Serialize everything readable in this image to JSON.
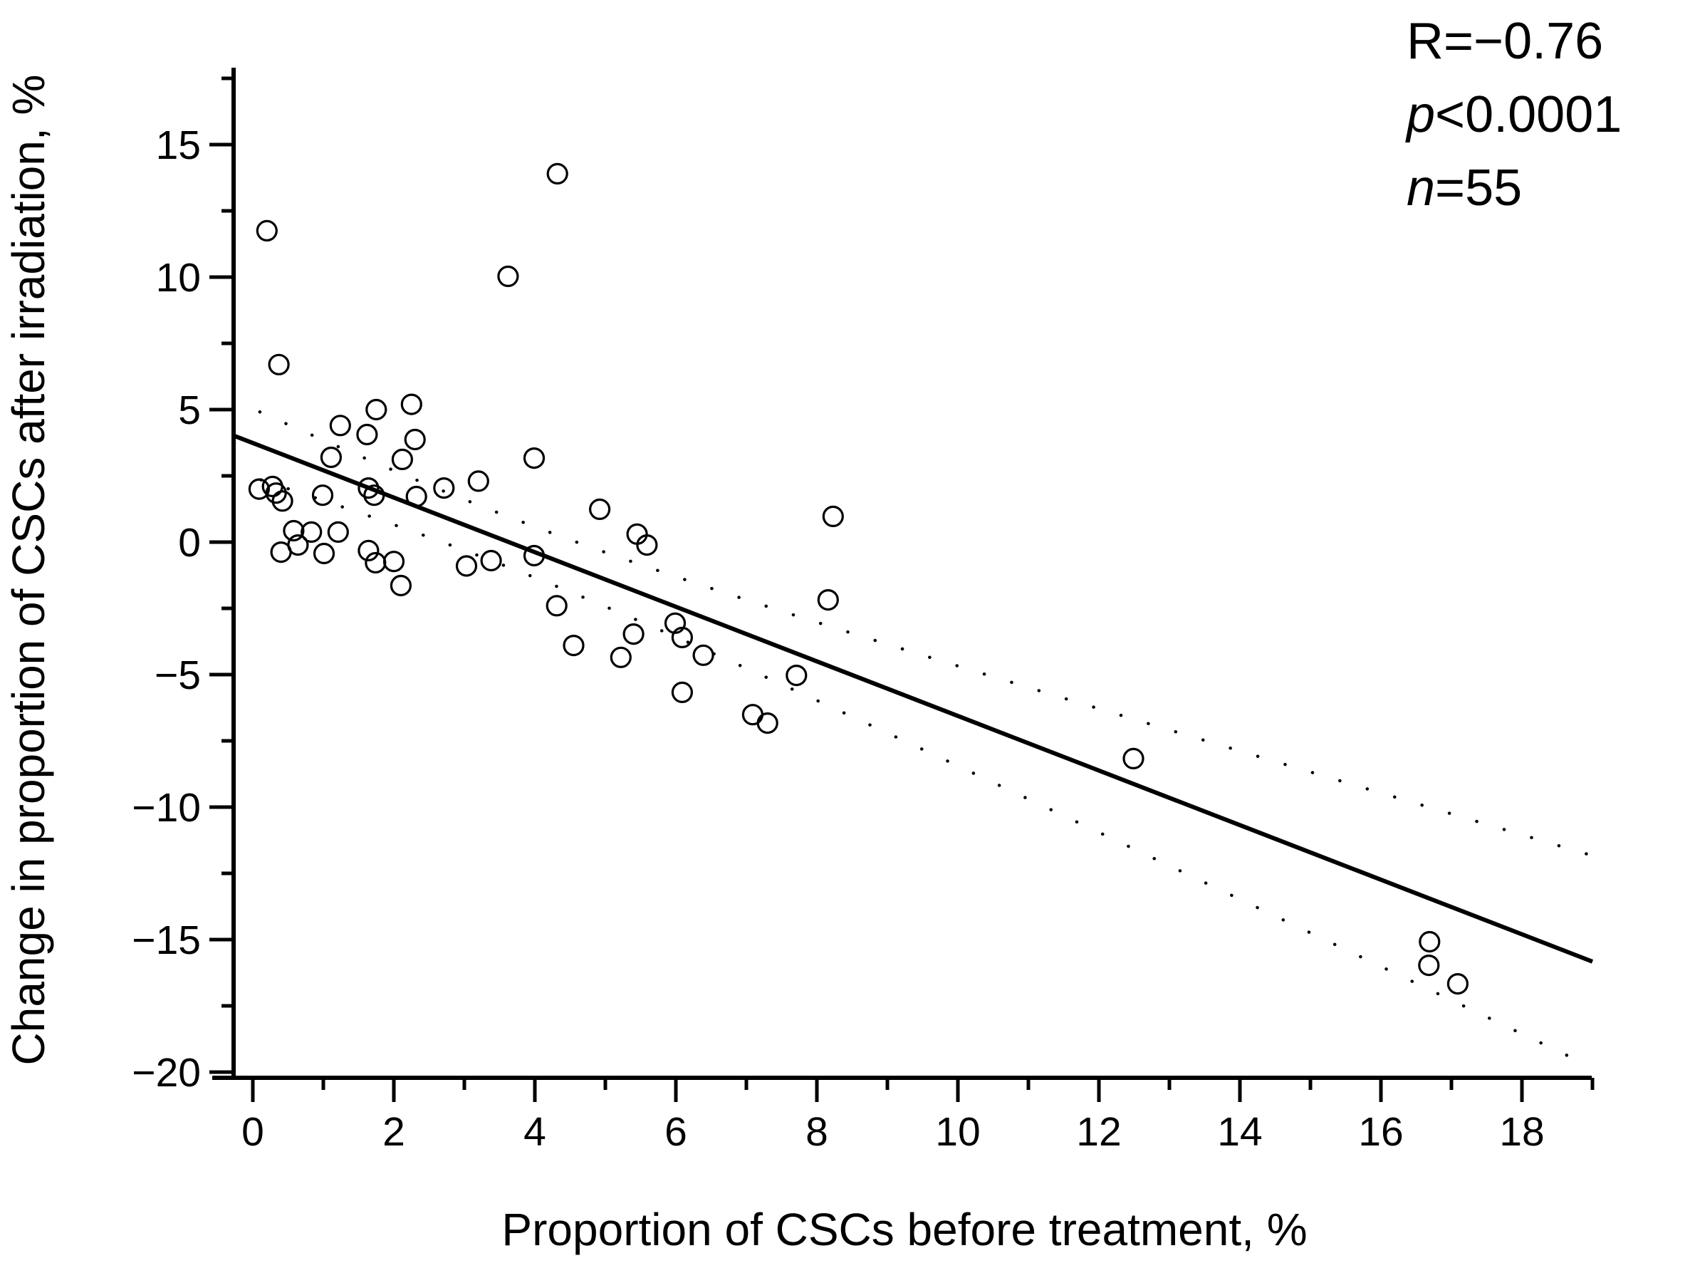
{
  "stats": {
    "r_prefix": "R",
    "r_rest": "=−0.76",
    "p_prefix": "p",
    "p_rest": "<0.0001",
    "n_prefix": "n",
    "n_rest": "=55"
  },
  "chart_data": {
    "type": "scatter",
    "title": "",
    "xlabel": "Proportion of CSCs before treatment, %",
    "ylabel": "Change in proportion of CSCs after irradiation, %",
    "xlim": [
      -0.3,
      19
    ],
    "ylim": [
      -20.3,
      17.9
    ],
    "grid": false,
    "marker": "open-circle",
    "x_tick_values": [
      0,
      2,
      4,
      6,
      8,
      10,
      12,
      14,
      16,
      18
    ],
    "x_tick_labels": [
      "0",
      "2",
      "4",
      "6",
      "8",
      "10",
      "12",
      "14",
      "16",
      "18"
    ],
    "x_minor_ticks": [
      1,
      3,
      5,
      7,
      9,
      11,
      13,
      15,
      17,
      19
    ],
    "y_tick_values": [
      15,
      10,
      5,
      0,
      -5,
      -10,
      -15,
      -20
    ],
    "y_tick_labels": [
      "15",
      "10",
      "5",
      "0",
      "−5",
      "−10",
      "−15",
      "−20"
    ],
    "y_minor_ticks": [
      17.5,
      12.5,
      7.5,
      2.5,
      -2.5,
      -7.5,
      -12.5,
      -17.5
    ],
    "points": [
      [
        0.2,
        11.75
      ],
      [
        0.37,
        6.7
      ],
      [
        4.32,
        13.9
      ],
      [
        3.62,
        10.03
      ],
      [
        1.75,
        5.0
      ],
      [
        2.25,
        5.2
      ],
      [
        1.24,
        4.4
      ],
      [
        1.62,
        4.06
      ],
      [
        2.3,
        3.87
      ],
      [
        1.11,
        3.2
      ],
      [
        2.12,
        3.12
      ],
      [
        3.99,
        3.17
      ],
      [
        3.2,
        2.3
      ],
      [
        2.71,
        2.04
      ],
      [
        0.09,
        2.0
      ],
      [
        0.28,
        2.1
      ],
      [
        0.33,
        1.85
      ],
      [
        0.42,
        1.55
      ],
      [
        0.99,
        1.77
      ],
      [
        1.64,
        2.04
      ],
      [
        1.72,
        1.77
      ],
      [
        2.32,
        1.72
      ],
      [
        4.92,
        1.24
      ],
      [
        5.45,
        0.3
      ],
      [
        5.59,
        -0.11
      ],
      [
        0.58,
        0.43
      ],
      [
        0.83,
        0.38
      ],
      [
        1.21,
        0.38
      ],
      [
        0.64,
        -0.11
      ],
      [
        0.4,
        -0.38
      ],
      [
        1.01,
        -0.43
      ],
      [
        1.64,
        -0.32
      ],
      [
        1.74,
        -0.78
      ],
      [
        2.0,
        -0.73
      ],
      [
        2.1,
        -1.64
      ],
      [
        3.03,
        -0.9
      ],
      [
        3.38,
        -0.7
      ],
      [
        3.99,
        -0.51
      ],
      [
        4.31,
        -2.4
      ],
      [
        4.55,
        -3.9
      ],
      [
        5.4,
        -3.47
      ],
      [
        5.22,
        -4.35
      ],
      [
        5.99,
        -3.06
      ],
      [
        6.09,
        -3.6
      ],
      [
        6.39,
        -4.27
      ],
      [
        6.09,
        -5.67
      ],
      [
        7.09,
        -6.51
      ],
      [
        7.3,
        -6.83
      ],
      [
        7.71,
        -5.03
      ],
      [
        8.16,
        -2.18
      ],
      [
        8.23,
        0.97
      ],
      [
        12.49,
        -8.17
      ],
      [
        16.69,
        -15.08
      ],
      [
        16.68,
        -15.97
      ],
      [
        17.09,
        -16.67
      ]
    ],
    "regression": {
      "slope": -1.03,
      "intercept": 3.74,
      "x_start": -0.27,
      "x_end": 19.0
    },
    "ci_band": {
      "base_half_width": 0.95,
      "curvature": 0.0696,
      "x_mean": 3.5,
      "style": "dotted"
    },
    "annotation": {
      "R": "−0.76",
      "p": "<0.0001",
      "n": "55"
    },
    "colors": {
      "foreground": "#000000",
      "background": "#ffffff"
    }
  }
}
